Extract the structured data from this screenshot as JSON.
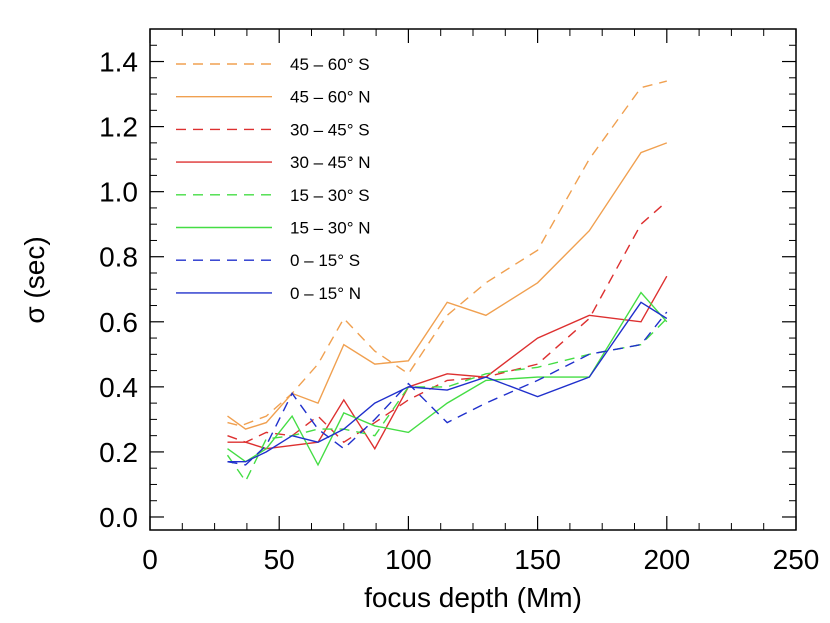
{
  "chart_data": {
    "type": "line",
    "xlabel": "focus depth (Mm)",
    "ylabel": "σ (sec)",
    "xlim": [
      0,
      250
    ],
    "ylim": [
      -0.04,
      1.5
    ],
    "x_ticks": [
      0,
      50,
      100,
      150,
      200,
      250
    ],
    "x_tick_labels": [
      "0",
      "50",
      "100",
      "150",
      "200",
      "250"
    ],
    "y_ticks": [
      0.0,
      0.2,
      0.4,
      0.6,
      0.8,
      1.0,
      1.2,
      1.4
    ],
    "y_tick_labels": [
      "0.0",
      "0.2",
      "0.4",
      "0.6",
      "0.8",
      "1.0",
      "1.2",
      "1.4"
    ],
    "grid": false,
    "legend_position": "top-left",
    "series": [
      {
        "name": "45 – 60° S",
        "color": "#f0a050",
        "style": "dashed",
        "x": [
          30,
          35,
          45,
          55,
          65,
          75,
          87,
          100,
          115,
          130,
          150,
          170,
          190,
          200
        ],
        "y": [
          0.29,
          0.28,
          0.31,
          0.38,
          0.47,
          0.61,
          0.51,
          0.44,
          0.62,
          0.72,
          0.82,
          1.1,
          1.32,
          1.34
        ]
      },
      {
        "name": "45 – 60° N",
        "color": "#f0a050",
        "style": "solid",
        "x": [
          30,
          37,
          45,
          55,
          65,
          75,
          87,
          100,
          115,
          130,
          150,
          170,
          190,
          200
        ],
        "y": [
          0.31,
          0.27,
          0.29,
          0.38,
          0.35,
          0.53,
          0.47,
          0.48,
          0.66,
          0.62,
          0.72,
          0.88,
          1.12,
          1.15
        ]
      },
      {
        "name": "30 – 45° S",
        "color": "#dd3030",
        "style": "dashed",
        "x": [
          30,
          37,
          45,
          55,
          65,
          75,
          87,
          100,
          115,
          130,
          150,
          170,
          190,
          200
        ],
        "y": [
          0.25,
          0.23,
          0.26,
          0.25,
          0.31,
          0.23,
          0.29,
          0.36,
          0.42,
          0.43,
          0.47,
          0.61,
          0.9,
          0.97
        ]
      },
      {
        "name": "30 – 45° N",
        "color": "#dd3030",
        "style": "solid",
        "x": [
          30,
          37,
          45,
          55,
          65,
          75,
          87,
          100,
          115,
          130,
          150,
          170,
          190,
          200
        ],
        "y": [
          0.23,
          0.23,
          0.21,
          0.22,
          0.23,
          0.36,
          0.21,
          0.4,
          0.44,
          0.43,
          0.55,
          0.62,
          0.6,
          0.74
        ]
      },
      {
        "name": "15 – 30° S",
        "color": "#44dd44",
        "style": "dashed",
        "x": [
          30,
          37,
          45,
          55,
          65,
          75,
          87,
          100,
          115,
          130,
          150,
          170,
          190,
          200
        ],
        "y": [
          0.19,
          0.11,
          0.24,
          0.25,
          0.27,
          0.27,
          0.25,
          0.4,
          0.4,
          0.44,
          0.46,
          0.5,
          0.53,
          0.61
        ]
      },
      {
        "name": "15 – 30° N",
        "color": "#44dd44",
        "style": "solid",
        "x": [
          30,
          37,
          45,
          55,
          65,
          75,
          87,
          100,
          115,
          130,
          150,
          170,
          190,
          200
        ],
        "y": [
          0.21,
          0.17,
          0.21,
          0.31,
          0.16,
          0.32,
          0.28,
          0.26,
          0.35,
          0.42,
          0.43,
          0.43,
          0.69,
          0.6
        ]
      },
      {
        "name": "0 – 15° S",
        "color": "#2030cc",
        "style": "dashed",
        "x": [
          30,
          37,
          45,
          55,
          65,
          75,
          87,
          100,
          115,
          130,
          150,
          170,
          190,
          200
        ],
        "y": [
          0.17,
          0.16,
          0.22,
          0.38,
          0.27,
          0.21,
          0.3,
          0.41,
          0.29,
          0.35,
          0.42,
          0.5,
          0.53,
          0.63
        ]
      },
      {
        "name": "0 – 15° N",
        "color": "#2030cc",
        "style": "solid",
        "x": [
          30,
          37,
          45,
          55,
          65,
          75,
          87,
          100,
          115,
          130,
          150,
          170,
          190,
          200
        ],
        "y": [
          0.17,
          0.17,
          0.2,
          0.25,
          0.23,
          0.27,
          0.35,
          0.4,
          0.39,
          0.43,
          0.37,
          0.43,
          0.66,
          0.61
        ]
      }
    ]
  }
}
